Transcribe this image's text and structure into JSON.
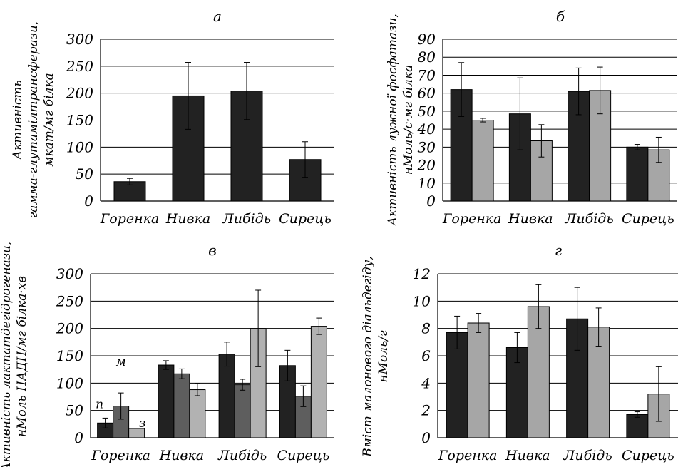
{
  "chart_data": [
    {
      "panel_label": "а",
      "type": "bar",
      "categories": [
        "Горенка",
        "Нивка",
        "Либідь",
        "Сирець"
      ],
      "series": [
        {
          "values": [
            36,
            195,
            204,
            77
          ],
          "errors": [
            6,
            62,
            53,
            33
          ],
          "color": "#222222"
        }
      ],
      "ylabel_lines": [
        "Активність",
        "гамма-глутамілтрансферази,",
        "мкат/мг білка"
      ],
      "ylim": [
        0,
        300
      ],
      "yticks": [
        0,
        50,
        100,
        150,
        200,
        250,
        300
      ],
      "grid": "horizontal"
    },
    {
      "panel_label": "б",
      "type": "bar",
      "categories": [
        "Горенка",
        "Нивка",
        "Либідь",
        "Сирець"
      ],
      "series": [
        {
          "values": [
            62,
            48.5,
            61,
            30
          ],
          "errors": [
            15,
            20,
            13,
            1.5
          ],
          "color": "#222222"
        },
        {
          "values": [
            45,
            33.5,
            61.5,
            28.5
          ],
          "errors": [
            1,
            9,
            13,
            7
          ],
          "color": "#a6a6a6"
        }
      ],
      "ylabel_lines": [
        "Активність лужної фосфатази,",
        "нМоль/с·мг білка"
      ],
      "ylim": [
        0,
        90
      ],
      "yticks": [
        0,
        10,
        20,
        30,
        40,
        50,
        60,
        70,
        80,
        90
      ],
      "grid": "horizontal"
    },
    {
      "panel_label": "в",
      "type": "bar",
      "categories": [
        "Горенка",
        "Нивка",
        "Либідь",
        "Сирець"
      ],
      "series": [
        {
          "name": "п",
          "values": [
            27,
            133,
            153,
            132
          ],
          "errors": [
            9,
            8,
            22,
            28
          ],
          "color": "#222222"
        },
        {
          "name": "м",
          "values": [
            58,
            117,
            97,
            76
          ],
          "errors": [
            24,
            9,
            10,
            19
          ],
          "color": "#5e5e5e"
        },
        {
          "name": "з",
          "values": [
            17,
            88,
            200,
            204
          ],
          "errors": [
            0,
            11,
            70,
            15
          ],
          "color": "#b2b2b2"
        }
      ],
      "ylabel_lines": [
        "Активність лактатдегідрогенази,",
        "нМоль НАДН/мг білка·хв"
      ],
      "ylim": [
        0,
        300
      ],
      "yticks": [
        0,
        50,
        100,
        150,
        200,
        250,
        300
      ],
      "grid": "horizontal"
    },
    {
      "panel_label": "г",
      "type": "bar",
      "categories": [
        "Горенка",
        "Нивка",
        "Либідь",
        "Сирець"
      ],
      "series": [
        {
          "values": [
            7.7,
            6.6,
            8.7,
            1.7
          ],
          "errors": [
            1.2,
            1.1,
            2.3,
            0.2
          ],
          "color": "#222222"
        },
        {
          "values": [
            8.4,
            9.6,
            8.1,
            3.2
          ],
          "errors": [
            0.7,
            1.6,
            1.4,
            2.0
          ],
          "color": "#a6a6a6"
        }
      ],
      "ylabel_lines": [
        "Вміст малонового діальдегіду,",
        "нМоль/г"
      ],
      "ylim": [
        0,
        12
      ],
      "yticks": [
        0,
        2,
        4,
        6,
        8,
        10,
        12
      ],
      "grid": "horizontal"
    }
  ]
}
